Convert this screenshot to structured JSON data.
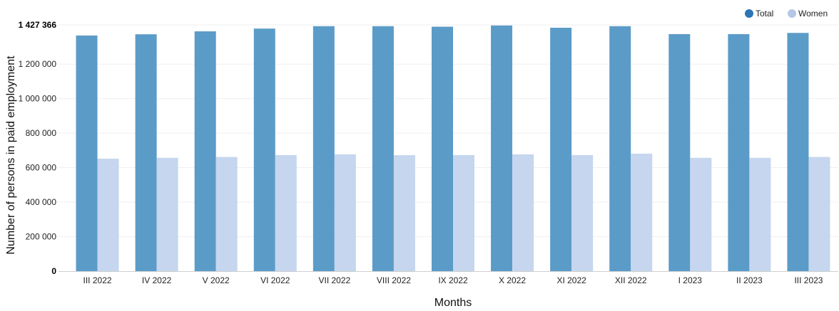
{
  "chart_data": {
    "type": "bar",
    "title": "",
    "xlabel": "Months",
    "ylabel": "Number of persons in paid employment",
    "categories": [
      "III 2022",
      "IV 2022",
      "V 2022",
      "VI 2022",
      "VII 2022",
      "VIII 2022",
      "IX 2022",
      "X 2022",
      "XI 2022",
      "XII 2022",
      "I 2023",
      "II 2023",
      "III 2023"
    ],
    "series": [
      {
        "name": "Total",
        "color": "#5b9bc8",
        "legend_color": "#2e75b6",
        "values": [
          1366000,
          1373000,
          1390000,
          1406000,
          1420000,
          1420000,
          1417000,
          1424000,
          1411000,
          1420000,
          1374000,
          1374000,
          1381000
        ]
      },
      {
        "name": "Women",
        "color": "#c5d6ee",
        "legend_color": "#b4c7e7",
        "values": [
          652000,
          657000,
          662000,
          673000,
          677000,
          672000,
          673000,
          677000,
          673000,
          681000,
          657000,
          657000,
          662000
        ]
      }
    ],
    "ylim": [
      0,
      1427366
    ],
    "yticks": [
      {
        "value": 0,
        "label": "0",
        "bold": true
      },
      {
        "value": 200000,
        "label": "200 000",
        "bold": false
      },
      {
        "value": 400000,
        "label": "400 000",
        "bold": false
      },
      {
        "value": 600000,
        "label": "600 000",
        "bold": false
      },
      {
        "value": 800000,
        "label": "800 000",
        "bold": false
      },
      {
        "value": 1000000,
        "label": "1 000 000",
        "bold": false
      },
      {
        "value": 1200000,
        "label": "1 200 000",
        "bold": false
      },
      {
        "value": 1427366,
        "label": "1 427 366",
        "bold": true
      }
    ],
    "grid": true,
    "legend_position": "top-right"
  }
}
